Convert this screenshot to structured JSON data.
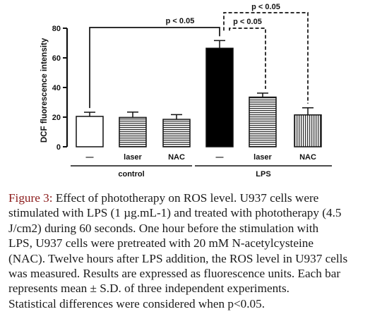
{
  "chart_data": {
    "type": "bar",
    "ylabel": "DCF fluorescence intensity",
    "ylim": [
      0,
      80
    ],
    "yticks": [
      "0",
      "20",
      "40",
      "60",
      "80"
    ],
    "categories": [
      "—",
      "laser",
      "NAC",
      "—",
      "laser",
      "NAC"
    ],
    "values": [
      20.5,
      19.8,
      18.5,
      66.5,
      33.5,
      21.5
    ],
    "errors": [
      2.8,
      3.6,
      3.2,
      5.2,
      2.7,
      4.8
    ],
    "fills": [
      "white",
      "hlines",
      "hlines",
      "black",
      "hlines",
      "vlines"
    ],
    "groups": [
      {
        "label": "control",
        "start": 0,
        "end": 2
      },
      {
        "label": "LPS",
        "start": 3,
        "end": 5
      }
    ],
    "annotations": [
      {
        "text": "p < 0.05",
        "from": 0,
        "to": 3,
        "style": "solid"
      },
      {
        "text": "p < 0.05",
        "from": 3,
        "to": 5,
        "style": "dashed"
      },
      {
        "text": "p < 0.05",
        "from": 3,
        "to": 4,
        "style": "dashed"
      }
    ]
  },
  "caption": {
    "figure_label": "Figure 3:",
    "lines": [
      "Effect of phototherapy on ROS level. U937 cells were",
      "stimulated with LPS (1 µg.mL-1) and treated with phototherapy (4.5",
      "J/cm2) during 60 seconds. One hour before the stimulation with",
      "LPS, U937 cells were pretreated with 20 mM N-acetylcysteine",
      "(NAC). Twelve hours after LPS addition, the ROS level in U937 cells",
      "was measured. Results are expressed as fluorescence units. Each bar",
      "represents mean ± S.D. of three independent experiments.",
      "Statistical differences were considered when p<0.05."
    ]
  }
}
